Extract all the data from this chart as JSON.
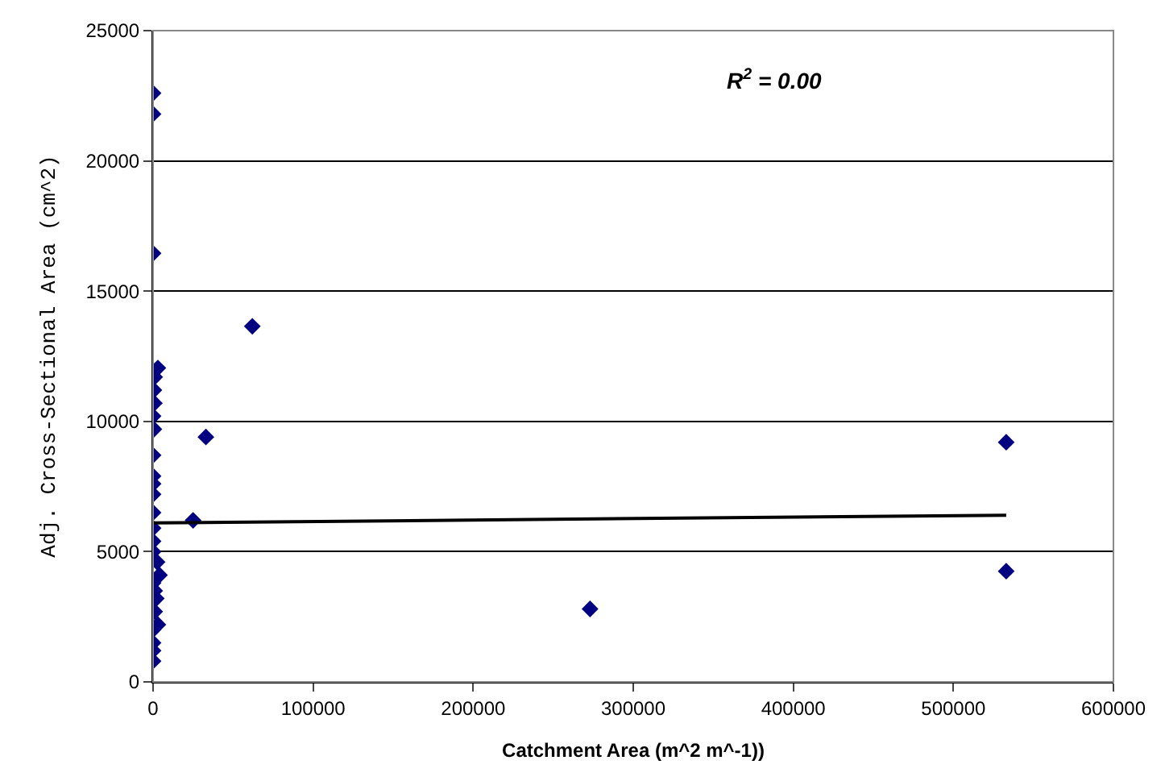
{
  "chart_data": {
    "type": "scatter",
    "xlabel": "Catchment Area (m^2 m^-1))",
    "ylabel": "Adj. Cross-Sectional Area (cm^2)",
    "annotations": [
      "R$^{2}$ = 0.00"
    ],
    "xlim": [
      0,
      600000
    ],
    "xticks": [
      0,
      100000,
      200000,
      300000,
      400000,
      500000,
      600000
    ],
    "ylim": [
      0,
      25000
    ],
    "yticks": [
      0,
      5000,
      10000,
      15000,
      20000,
      25000
    ],
    "grid": "y",
    "legend": false,
    "marker": "diamond",
    "series": [
      {
        "color": "#000080",
        "x": [
          0,
          0,
          0,
          3000,
          1000,
          500,
          800,
          0,
          500,
          0,
          0,
          0,
          0,
          0,
          0,
          0,
          0,
          4000,
          0,
          1000,
          2000,
          3000,
          0,
          0,
          0,
          0,
          1000,
          2500,
          25000,
          33000,
          62000,
          273000,
          533000,
          533000
        ],
        "values": [
          22600,
          21800,
          16450,
          12050,
          11700,
          11200,
          10700,
          10200,
          9700,
          8700,
          7900,
          7600,
          7200,
          6500,
          5900,
          5400,
          5000,
          4100,
          3800,
          3500,
          3200,
          2200,
          2000,
          1500,
          1200,
          800,
          2700,
          4600,
          6200,
          9400,
          13650,
          2800,
          9200,
          4250
        ]
      },
      {
        "type": "line",
        "marker": "none",
        "color": "#000000",
        "x": [
          0,
          533000
        ],
        "values": [
          6100,
          6400
        ]
      }
    ]
  }
}
